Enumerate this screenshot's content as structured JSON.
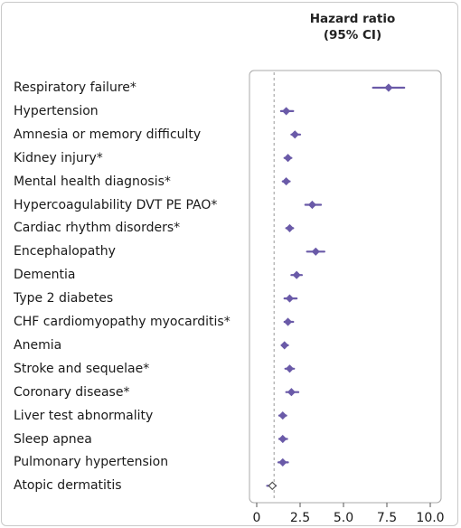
{
  "chart_data": {
    "type": "forest",
    "header": [
      "Hazard ratio",
      "(95% CI)"
    ],
    "x_ticks": [
      0,
      2.5,
      5.0,
      7.5,
      10.0
    ],
    "x_tick_labels": [
      "0",
      "2.5",
      "5.0",
      "7.5",
      "10.0"
    ],
    "xlim": [
      0,
      10
    ],
    "reference_line": 1,
    "accent_color": "#6a5aa8",
    "rows": [
      {
        "label": "Respiratory failure*",
        "hr": 7.6,
        "lo": 6.7,
        "hi": 8.5,
        "marker": "filled"
      },
      {
        "label": "Hypertension",
        "hr": 1.7,
        "lo": 1.4,
        "hi": 2.1,
        "marker": "filled"
      },
      {
        "label": "Amnesia or memory difficulty",
        "hr": 2.2,
        "lo": 2.0,
        "hi": 2.5,
        "marker": "filled"
      },
      {
        "label": "Kidney injury*",
        "hr": 1.8,
        "lo": 1.6,
        "hi": 2.0,
        "marker": "filled"
      },
      {
        "label": "Mental health diagnosis*",
        "hr": 1.7,
        "lo": 1.5,
        "hi": 1.9,
        "marker": "filled"
      },
      {
        "label": "Hypercoagulability DVT PE PAO*",
        "hr": 3.2,
        "lo": 2.8,
        "hi": 3.7,
        "marker": "filled"
      },
      {
        "label": "Cardiac rhythm disorders*",
        "hr": 1.9,
        "lo": 1.7,
        "hi": 2.1,
        "marker": "filled"
      },
      {
        "label": "Encephalopathy",
        "hr": 3.4,
        "lo": 2.9,
        "hi": 3.9,
        "marker": "filled"
      },
      {
        "label": "Dementia",
        "hr": 2.3,
        "lo": 2.0,
        "hi": 2.6,
        "marker": "filled"
      },
      {
        "label": "Type 2 diabetes",
        "hr": 1.9,
        "lo": 1.6,
        "hi": 2.3,
        "marker": "filled"
      },
      {
        "label": "CHF cardiomyopathy myocarditis*",
        "hr": 1.8,
        "lo": 1.6,
        "hi": 2.1,
        "marker": "filled"
      },
      {
        "label": "Anemia",
        "hr": 1.6,
        "lo": 1.45,
        "hi": 1.8,
        "marker": "filled"
      },
      {
        "label": "Stroke and sequelae*",
        "hr": 1.9,
        "lo": 1.65,
        "hi": 2.15,
        "marker": "filled"
      },
      {
        "label": "Coronary disease*",
        "hr": 2.0,
        "lo": 1.7,
        "hi": 2.4,
        "marker": "filled"
      },
      {
        "label": "Liver test abnormality",
        "hr": 1.5,
        "lo": 1.3,
        "hi": 1.7,
        "marker": "filled"
      },
      {
        "label": "Sleep apnea",
        "hr": 1.5,
        "lo": 1.3,
        "hi": 1.75,
        "marker": "filled"
      },
      {
        "label": "Pulmonary hypertension",
        "hr": 1.5,
        "lo": 1.25,
        "hi": 1.8,
        "marker": "filled"
      },
      {
        "label": "Atopic dermatitis",
        "hr": 0.9,
        "lo": 0.6,
        "hi": 1.1,
        "marker": "open"
      }
    ]
  }
}
